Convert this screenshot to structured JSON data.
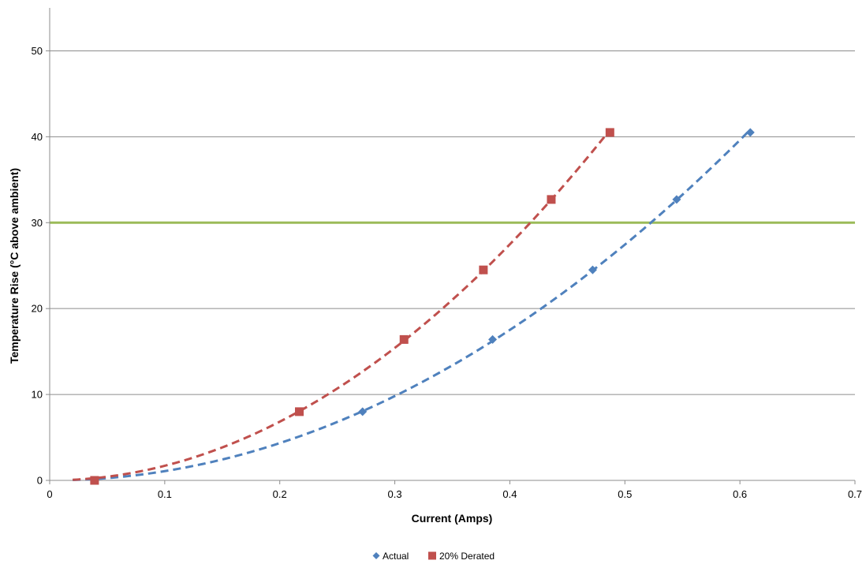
{
  "chart_data": {
    "type": "scatter",
    "title": "",
    "xlabel": "Current (Amps)",
    "ylabel": "Temperature Rise (°C above ambient)",
    "xlim": [
      0,
      0.7
    ],
    "ylim": [
      0,
      55
    ],
    "x_ticks": [
      0,
      0.1,
      0.2,
      0.3,
      0.4,
      0.5,
      0.6,
      0.7
    ],
    "x_tick_labels": [
      "0",
      "0.1",
      "0.2",
      "0.3",
      "0.4",
      "0.5",
      "0.6",
      "0.7"
    ],
    "y_ticks": [
      0,
      10,
      20,
      30,
      40,
      50
    ],
    "y_tick_labels": [
      "0",
      "10",
      "20",
      "30",
      "40",
      "50"
    ],
    "grid": "horizontal",
    "legend_position": "bottom",
    "series": [
      {
        "name": "Actual",
        "marker": "diamond",
        "color": "#4F81BD",
        "x": [
          0.039,
          0.272,
          0.385,
          0.472,
          0.545,
          0.609
        ],
        "y": [
          0,
          8.0,
          16.4,
          24.5,
          32.7,
          40.5
        ],
        "trendline": {
          "style": "dashed",
          "x_start": 0.02,
          "x_end": 0.609
        }
      },
      {
        "name": "20% Derated",
        "marker": "square",
        "color": "#C0504D",
        "x": [
          0.039,
          0.217,
          0.308,
          0.377,
          0.436,
          0.487
        ],
        "y": [
          0,
          8.0,
          16.4,
          24.5,
          32.7,
          40.5
        ],
        "trendline": {
          "style": "dashed",
          "x_start": 0.02,
          "x_end": 0.487
        }
      }
    ],
    "reference_lines": [
      {
        "axis": "y",
        "value": 30,
        "color": "#9BBB59"
      }
    ]
  }
}
